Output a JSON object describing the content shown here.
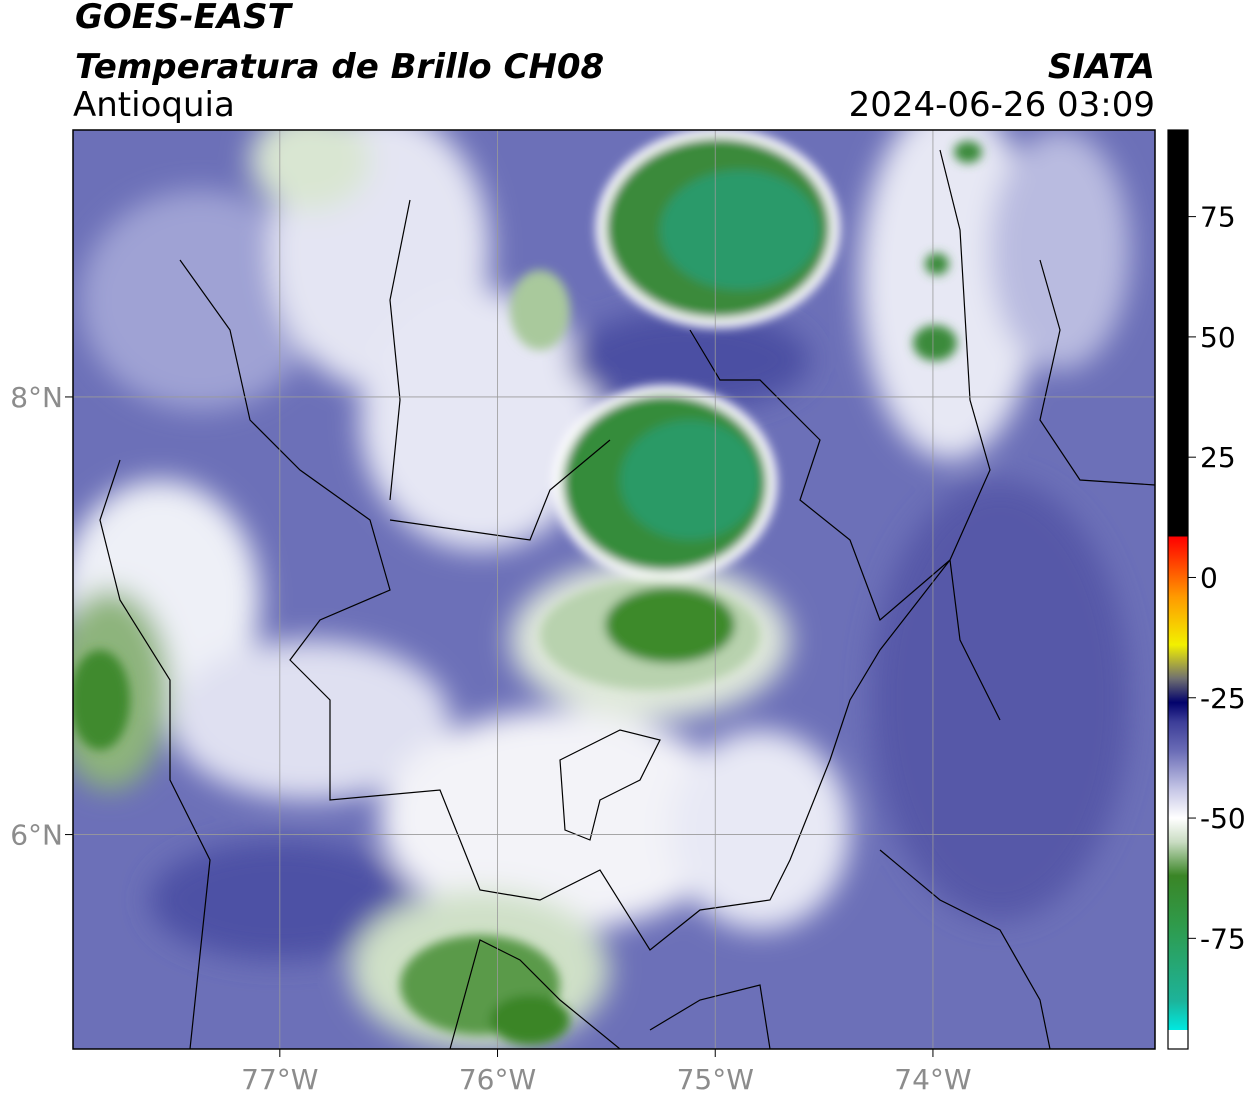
{
  "header": {
    "title": "GOES-EAST",
    "subtitle": "Temperatura de Brillo CH08",
    "region": "Antioquia",
    "source": "SIATA",
    "datetime": "2024-06-26 03:09"
  },
  "map": {
    "xlim": [
      -77.95,
      -72.98
    ],
    "ylim": [
      5.02,
      9.22
    ],
    "xticks": [
      {
        "value": -77,
        "label": "77°W"
      },
      {
        "value": -76,
        "label": "76°W"
      },
      {
        "value": -75,
        "label": "75°W"
      },
      {
        "value": -74,
        "label": "74°W"
      }
    ],
    "yticks": [
      {
        "value": 6,
        "label": "6°N"
      },
      {
        "value": 8,
        "label": "8°N"
      }
    ],
    "grid": true
  },
  "colorbar": {
    "lim": [
      -98,
      93
    ],
    "ticks": [
      -75,
      -50,
      -25,
      0,
      25,
      50,
      75
    ],
    "stops": [
      {
        "value": -98,
        "color": "#ffffff"
      },
      {
        "value": -94,
        "color": "#ffffff"
      },
      {
        "value": -94,
        "color": "#00e8e0"
      },
      {
        "value": -88,
        "color": "#1db39a"
      },
      {
        "value": -72,
        "color": "#2f9a4a"
      },
      {
        "value": -62,
        "color": "#3a8526"
      },
      {
        "value": -55,
        "color": "#c9dcc2"
      },
      {
        "value": -50,
        "color": "#ffffff"
      },
      {
        "value": -44,
        "color": "#c5c6e6"
      },
      {
        "value": -36,
        "color": "#6a6cb6"
      },
      {
        "value": -30,
        "color": "#3c3d98"
      },
      {
        "value": -26,
        "color": "#02026c"
      },
      {
        "value": -21,
        "color": "#707070"
      },
      {
        "value": -14,
        "color": "#f2f000"
      },
      {
        "value": -4,
        "color": "#ff9a00"
      },
      {
        "value": 5,
        "color": "#ff2a00"
      },
      {
        "value": 8.5,
        "color": "#ff0000"
      },
      {
        "value": 8.5,
        "color": "#000000"
      },
      {
        "value": 93,
        "color": "#000000"
      }
    ]
  }
}
